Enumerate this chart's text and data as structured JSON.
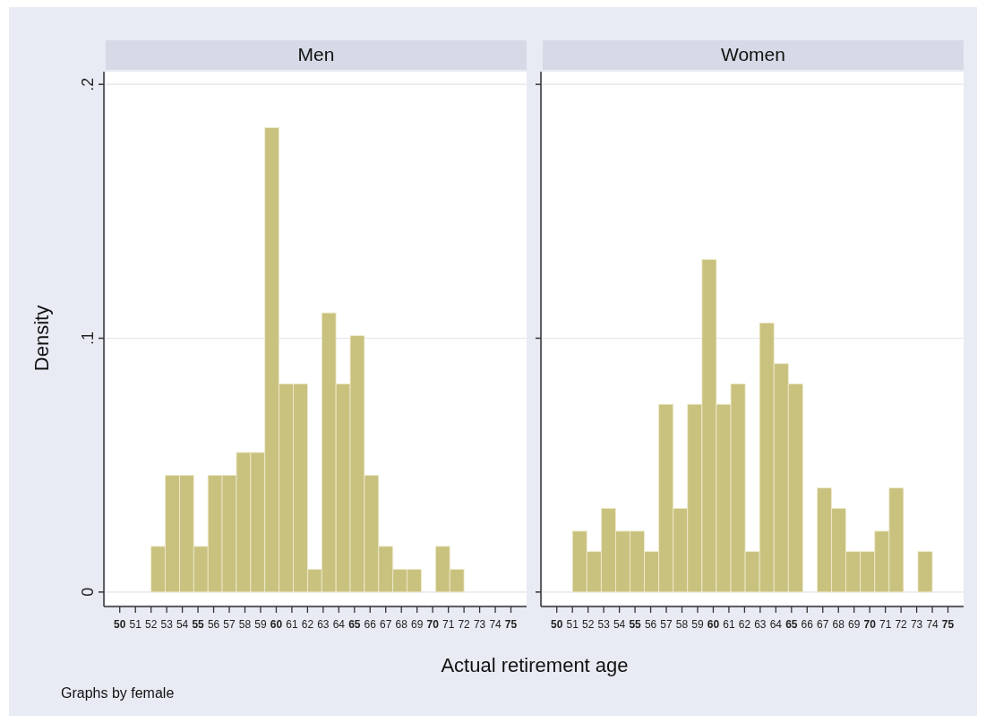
{
  "chart_data": [
    {
      "type": "histogram",
      "title": "Men",
      "ylabel": "Density",
      "xlabel": "Actual retirement age",
      "annotations": [
        "Graphs by female"
      ],
      "bins": [
        52,
        52.909,
        53.818,
        54.727,
        55.636,
        56.545,
        57.455,
        58.364,
        59.273,
        60.182,
        61.091,
        62,
        62.909,
        63.818,
        64.727,
        65.636,
        66.545,
        67.455,
        68.364,
        69.273,
        70.182,
        71.091,
        72
      ],
      "values": [
        0.018,
        0.046,
        0.046,
        0.018,
        0.046,
        0.046,
        0.055,
        0.055,
        0.183,
        0.082,
        0.082,
        0.009,
        0.11,
        0.082,
        0.101,
        0.046,
        0.018,
        0.009,
        0.009,
        0,
        0.018,
        0.009
      ],
      "color": "#c9c27f",
      "xlim": [
        49.1,
        76
      ],
      "ylim": [
        -0.005,
        0.205
      ],
      "xticks": [
        50,
        51,
        52,
        53,
        54,
        55,
        56,
        57,
        58,
        59,
        60,
        61,
        62,
        63,
        64,
        65,
        66,
        67,
        68,
        69,
        70,
        71,
        72,
        73,
        74,
        75
      ],
      "yticks": [
        0,
        {
          "value": 0.1,
          "label": ".1"
        },
        {
          "value": 0.2,
          "label": ".2"
        }
      ],
      "grid": "y"
    },
    {
      "type": "histogram",
      "title": "Women",
      "bins": [
        51,
        51.92,
        52.84,
        53.76,
        54.68,
        55.6,
        56.52,
        57.44,
        58.36,
        59.28,
        60.2,
        61.12,
        62.04,
        62.96,
        63.88,
        64.8,
        65.72,
        66.64,
        67.56,
        68.48,
        69.4,
        70.32,
        71.24,
        72.16,
        73.08,
        74
      ],
      "values": [
        0.024,
        0.016,
        0.033,
        0.024,
        0.024,
        0.016,
        0.074,
        0.033,
        0.074,
        0.131,
        0.074,
        0.082,
        0.016,
        0.106,
        0.09,
        0.082,
        0,
        0.041,
        0.033,
        0.016,
        0.016,
        0.024,
        0.041,
        0,
        0.016
      ],
      "color": "#c9c27f",
      "xlim": [
        49.1,
        76
      ],
      "ylim": [
        -0.005,
        0.205
      ],
      "xticks": [
        50,
        51,
        52,
        53,
        54,
        55,
        56,
        57,
        58,
        59,
        60,
        61,
        62,
        63,
        64,
        65,
        66,
        67,
        68,
        69,
        70,
        71,
        72,
        73,
        74,
        75
      ],
      "yticks": [
        0,
        0.1,
        0.2
      ],
      "grid": "y",
      "tick_labels": "x"
    }
  ]
}
